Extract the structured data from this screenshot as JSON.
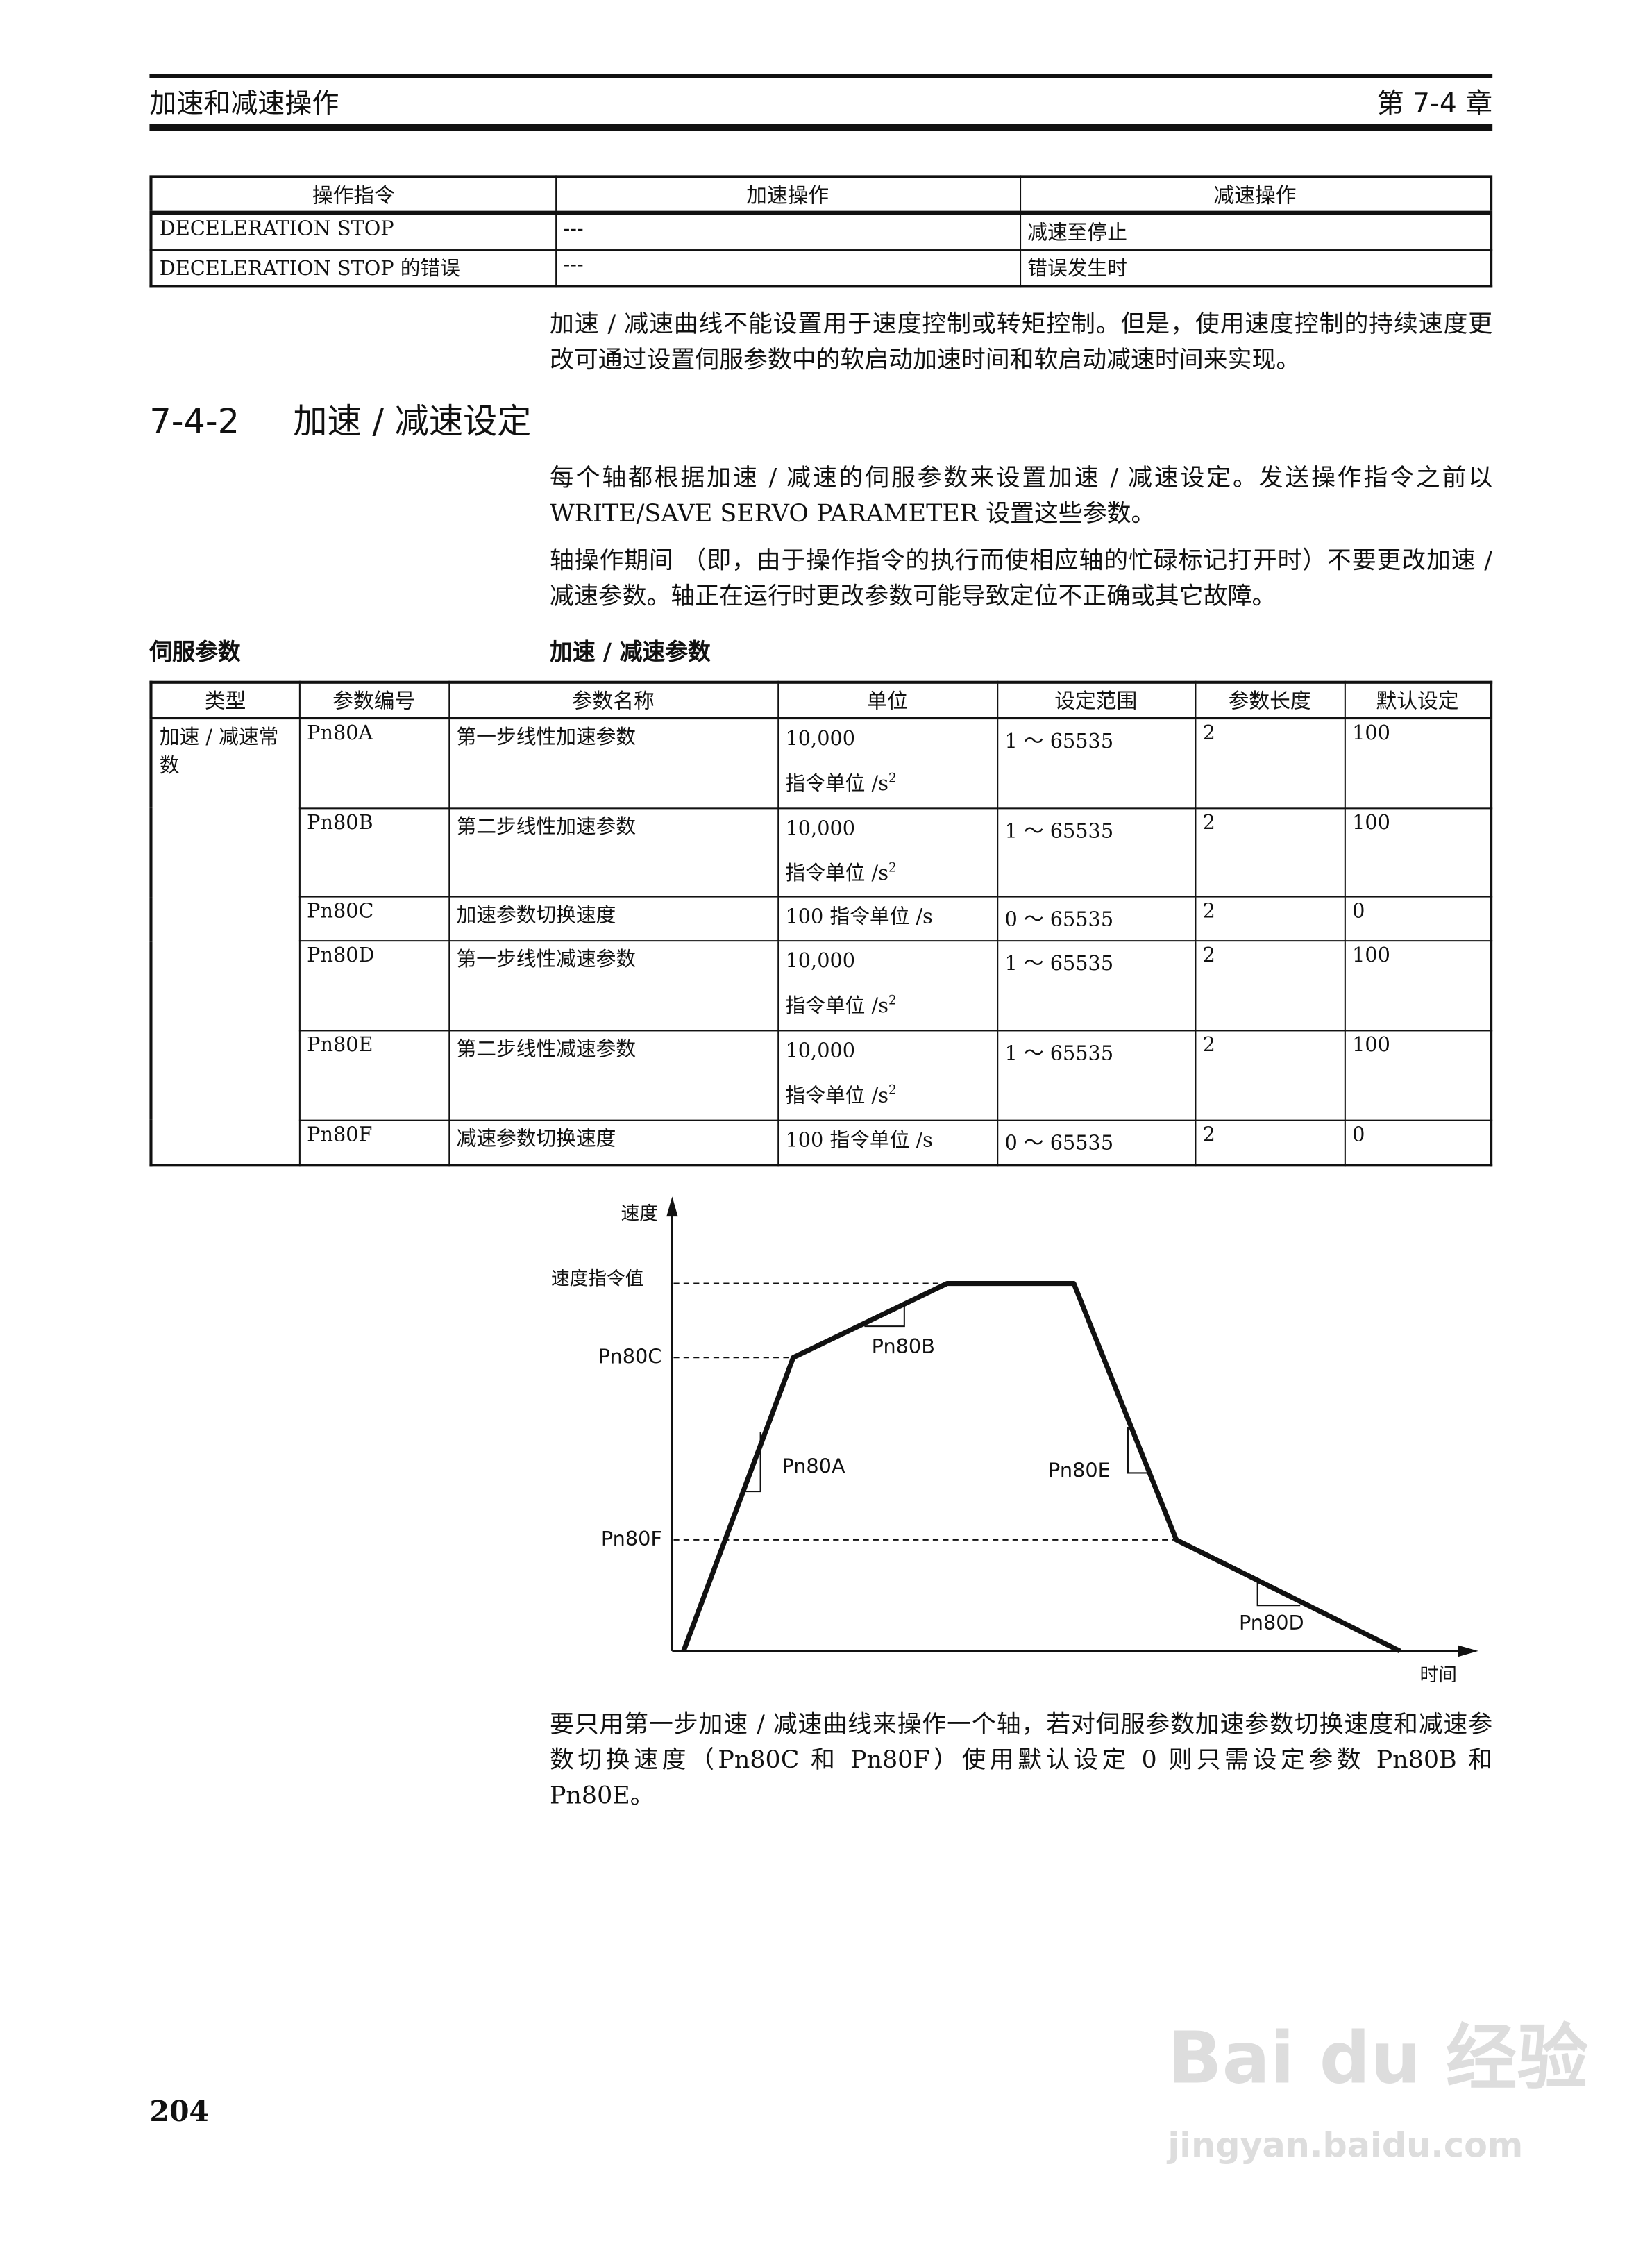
{
  "header": {
    "section_title": "加速和减速操作",
    "chapter": "第 7-4 章"
  },
  "op_table": {
    "columns": [
      "操作指令",
      "加速操作",
      "减速操作"
    ],
    "rows": [
      [
        "DECELERATION STOP",
        "---",
        "减速至停止"
      ],
      [
        "DECELERATION STOP 的错误",
        "---",
        "错误发生时"
      ]
    ]
  },
  "para1": "加速 / 减速曲线不能设置用于速度控制或转矩控制。但是，使用速度控制的持续速度更改可通过设置伺服参数中的软启动加速时间和软启动减速时间来实现。",
  "section": {
    "number": "7-4-2",
    "title": "加速 / 减速设定"
  },
  "para2": "每个轴都根据加速 / 减速的伺服参数来设置加速 / 减速设定。发送操作指令之前以 WRITE/SAVE SERVO PARAMETER 设置这些参数。",
  "para3": "轴操作期间 （即，由于操作指令的执行而使相应轴的忙碌标记打开时）不要更改加速 / 减速参数。轴正在运行时更改参数可能导致定位不正确或其它故障。",
  "side_label": "伺服参数",
  "table_caption": "加速 / 减速参数",
  "param_table": {
    "columns": [
      "类型",
      "参数编号",
      "参数名称",
      "单位",
      "设定范围",
      "参数长度",
      "默认设定"
    ],
    "type": "加速 / 减速常数",
    "rows": [
      {
        "no": "Pn80A",
        "name": "第一步线性加速参数",
        "unit": "10,000",
        "unit2": "指令单位 /s",
        "unit_sup": "2",
        "range": "1 ～ 65535",
        "len": "2",
        "def": "100"
      },
      {
        "no": "Pn80B",
        "name": "第二步线性加速参数",
        "unit": "10,000",
        "unit2": "指令单位 /s",
        "unit_sup": "2",
        "range": "1 ～ 65535",
        "len": "2",
        "def": "100"
      },
      {
        "no": "Pn80C",
        "name": "加速参数切换速度",
        "unit": "100 指令单位 /s",
        "unit2": "",
        "unit_sup": "",
        "range": "0 ～ 65535",
        "len": "2",
        "def": "0"
      },
      {
        "no": "Pn80D",
        "name": "第一步线性减速参数",
        "unit": "10,000",
        "unit2": "指令单位 /s",
        "unit_sup": "2",
        "range": "1 ～ 65535",
        "len": "2",
        "def": "100"
      },
      {
        "no": "Pn80E",
        "name": "第二步线性减速参数",
        "unit": "10,000",
        "unit2": "指令单位 /s",
        "unit_sup": "2",
        "range": "1 ～ 65535",
        "len": "2",
        "def": "100"
      },
      {
        "no": "Pn80F",
        "name": "减速参数切换速度",
        "unit": "100 指令单位 /s",
        "unit2": "",
        "unit_sup": "",
        "range": "0 ～ 65535",
        "len": "2",
        "def": "0"
      }
    ]
  },
  "diagram": {
    "y_axis": "速度",
    "x_axis": "时间",
    "levels": {
      "cmd": "速度指令值",
      "accel_switch": "Pn80C",
      "decel_switch": "Pn80F"
    },
    "slopes": {
      "accel1": "Pn80A",
      "accel2": "Pn80B",
      "decel2": "Pn80E",
      "decel1": "Pn80D"
    }
  },
  "para4": "要只用第一步加速 / 减速曲线来操作一个轴，若对伺服参数加速参数切换速度和减速参数切换速度（Pn80C 和 Pn80F）使用默认设定 0 则只需设定参数 Pn80B 和 Pn80E。",
  "page_number": "204",
  "watermark": {
    "logo": "Bai du 经验",
    "url": "jingyan.baidu.com"
  }
}
